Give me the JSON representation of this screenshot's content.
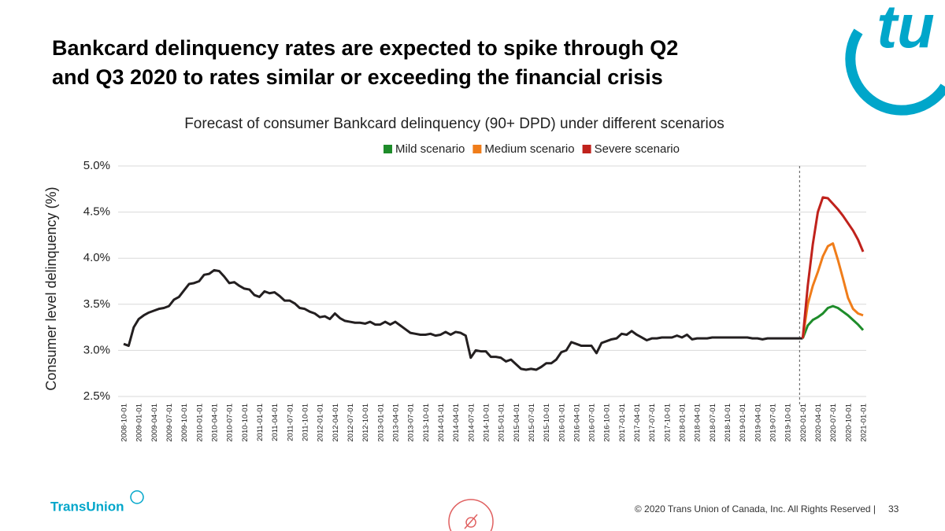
{
  "header": {
    "title_lines": [
      "Bankcard delinquency rates are expected to spike through Q2",
      "and Q3 2020 to rates similar or exceeding the financial crisis"
    ],
    "logo_text": "tu"
  },
  "chart_data": {
    "type": "line",
    "title": "Forecast of consumer Bankcard delinquency (90+ DPD) under different scenarios",
    "y_label": "Consumer level delinquency (%)",
    "ylim": [
      2.5,
      5.0
    ],
    "yticks": [
      {
        "value": 2.5,
        "label": "2.5%"
      },
      {
        "value": 3.0,
        "label": "3.0%"
      },
      {
        "value": 3.5,
        "label": "3.5%"
      },
      {
        "value": 4.0,
        "label": "4.0%"
      },
      {
        "value": 4.5,
        "label": "4.5%"
      },
      {
        "value": 5.0,
        "label": "5.0%"
      }
    ],
    "grid": true,
    "legend": "top",
    "categories": [
      "2008-10-01",
      null,
      null,
      "2009-01-01",
      null,
      null,
      "2009-04-01",
      null,
      null,
      "2009-07-01",
      null,
      null,
      "2009-10-01",
      null,
      null,
      "2010-01-01",
      null,
      null,
      "2010-04-01",
      null,
      null,
      "2010-07-01",
      null,
      null,
      "2010-10-01",
      null,
      null,
      "2011-01-01",
      null,
      null,
      "2011-04-01",
      null,
      null,
      "2011-07-01",
      null,
      null,
      "2011-10-01",
      null,
      null,
      "2012-01-01",
      null,
      null,
      "2012-04-01",
      null,
      null,
      "2012-07-01",
      null,
      null,
      "2012-10-01",
      null,
      null,
      "2013-01-01",
      null,
      null,
      "2013-04-01",
      null,
      null,
      "2013-07-01",
      null,
      null,
      "2013-10-01",
      null,
      null,
      "2014-01-01",
      null,
      null,
      "2014-04-01",
      null,
      null,
      "2014-07-01",
      null,
      null,
      "2014-10-01",
      null,
      null,
      "2015-01-01",
      null,
      null,
      "2015-04-01",
      null,
      null,
      "2015-07-01",
      null,
      null,
      "2015-10-01",
      null,
      null,
      "2016-01-01",
      null,
      null,
      "2016-04-01",
      null,
      null,
      "2016-07-01",
      null,
      null,
      "2016-10-01",
      null,
      null,
      "2017-01-01",
      null,
      null,
      "2017-04-01",
      null,
      null,
      "2017-07-01",
      null,
      null,
      "2017-10-01",
      null,
      null,
      "2018-01-01",
      null,
      null,
      "2018-04-01",
      null,
      null,
      "2018-07-01",
      null,
      null,
      "2018-10-01",
      null,
      null,
      "2019-01-01",
      null,
      null,
      "2019-04-01",
      null,
      null,
      "2019-07-01",
      null,
      null,
      "2019-10-01",
      null,
      null,
      "2020-01-01",
      null,
      null,
      "2020-04-01",
      null,
      null,
      "2020-07-01",
      null,
      null,
      "2020-10-01",
      null,
      null,
      "2021-01-01"
    ],
    "series": [
      {
        "color": "#231f20",
        "values": [
          3.07,
          3.05,
          3.25,
          3.34,
          3.38,
          3.41,
          3.43,
          3.45,
          3.46,
          3.48,
          3.55,
          3.58,
          3.65,
          3.72,
          3.73,
          3.75,
          3.82,
          3.83,
          3.87,
          3.86,
          3.8,
          3.73,
          3.74,
          3.7,
          3.67,
          3.66,
          3.6,
          3.58,
          3.64,
          3.62,
          3.63,
          3.59,
          3.54,
          3.54,
          3.51,
          3.46,
          3.45,
          3.42,
          3.4,
          3.36,
          3.37,
          3.34,
          3.4,
          3.35,
          3.32,
          3.31,
          3.3,
          3.3,
          3.29,
          3.31,
          3.28,
          3.28,
          3.31,
          3.28,
          3.31,
          3.27,
          3.23,
          3.19,
          3.18,
          3.17,
          3.17,
          3.18,
          3.16,
          3.17,
          3.2,
          3.17,
          3.2,
          3.19,
          3.16,
          2.92,
          3.0,
          2.99,
          2.99,
          2.93,
          2.93,
          2.92,
          2.88,
          2.9,
          2.85,
          2.8,
          2.79,
          2.8,
          2.79,
          2.82,
          2.86,
          2.86,
          2.9,
          2.98,
          3.0,
          3.09,
          3.07,
          3.05,
          3.05,
          3.05,
          2.97,
          3.08,
          3.1,
          3.12,
          3.13,
          3.18,
          3.17,
          3.21,
          3.17,
          3.14,
          3.11,
          3.13,
          3.13,
          3.14,
          3.14,
          3.14,
          3.16,
          3.14,
          3.17,
          3.12,
          3.13,
          3.13,
          3.13,
          3.14,
          3.14,
          3.14,
          3.14,
          3.14,
          3.14,
          3.14,
          3.14,
          3.13,
          3.13,
          3.12,
          3.13,
          3.13,
          3.13,
          3.13,
          3.13,
          3.13,
          3.13,
          3.13,
          null,
          null,
          null,
          null,
          null,
          null,
          null,
          null,
          null,
          null,
          null,
          null
        ]
      },
      {
        "name": "Mild scenario",
        "color": "#1e8c2a",
        "values": [
          null,
          null,
          null,
          null,
          null,
          null,
          null,
          null,
          null,
          null,
          null,
          null,
          null,
          null,
          null,
          null,
          null,
          null,
          null,
          null,
          null,
          null,
          null,
          null,
          null,
          null,
          null,
          null,
          null,
          null,
          null,
          null,
          null,
          null,
          null,
          null,
          null,
          null,
          null,
          null,
          null,
          null,
          null,
          null,
          null,
          null,
          null,
          null,
          null,
          null,
          null,
          null,
          null,
          null,
          null,
          null,
          null,
          null,
          null,
          null,
          null,
          null,
          null,
          null,
          null,
          null,
          null,
          null,
          null,
          null,
          null,
          null,
          null,
          null,
          null,
          null,
          null,
          null,
          null,
          null,
          null,
          null,
          null,
          null,
          null,
          null,
          null,
          null,
          null,
          null,
          null,
          null,
          null,
          null,
          null,
          null,
          null,
          null,
          null,
          null,
          null,
          null,
          null,
          null,
          null,
          null,
          null,
          null,
          null,
          null,
          null,
          null,
          null,
          null,
          null,
          null,
          null,
          null,
          null,
          null,
          null,
          null,
          null,
          null,
          null,
          null,
          null,
          null,
          null,
          null,
          null,
          null,
          null,
          null,
          null,
          3.13,
          3.27,
          3.33,
          3.36,
          3.4,
          3.46,
          3.48,
          3.46,
          3.42,
          3.38,
          3.33,
          3.28,
          3.22
        ]
      },
      {
        "name": "Medium scenario",
        "color": "#f07d1a",
        "values": [
          null,
          null,
          null,
          null,
          null,
          null,
          null,
          null,
          null,
          null,
          null,
          null,
          null,
          null,
          null,
          null,
          null,
          null,
          null,
          null,
          null,
          null,
          null,
          null,
          null,
          null,
          null,
          null,
          null,
          null,
          null,
          null,
          null,
          null,
          null,
          null,
          null,
          null,
          null,
          null,
          null,
          null,
          null,
          null,
          null,
          null,
          null,
          null,
          null,
          null,
          null,
          null,
          null,
          null,
          null,
          null,
          null,
          null,
          null,
          null,
          null,
          null,
          null,
          null,
          null,
          null,
          null,
          null,
          null,
          null,
          null,
          null,
          null,
          null,
          null,
          null,
          null,
          null,
          null,
          null,
          null,
          null,
          null,
          null,
          null,
          null,
          null,
          null,
          null,
          null,
          null,
          null,
          null,
          null,
          null,
          null,
          null,
          null,
          null,
          null,
          null,
          null,
          null,
          null,
          null,
          null,
          null,
          null,
          null,
          null,
          null,
          null,
          null,
          null,
          null,
          null,
          null,
          null,
          null,
          null,
          null,
          null,
          null,
          null,
          null,
          null,
          null,
          null,
          null,
          null,
          null,
          null,
          null,
          null,
          null,
          3.13,
          3.5,
          3.7,
          3.85,
          4.02,
          4.13,
          4.16,
          3.98,
          3.78,
          3.57,
          3.45,
          3.4,
          3.38
        ]
      },
      {
        "name": "Severe scenario",
        "color": "#c0221c",
        "values": [
          null,
          null,
          null,
          null,
          null,
          null,
          null,
          null,
          null,
          null,
          null,
          null,
          null,
          null,
          null,
          null,
          null,
          null,
          null,
          null,
          null,
          null,
          null,
          null,
          null,
          null,
          null,
          null,
          null,
          null,
          null,
          null,
          null,
          null,
          null,
          null,
          null,
          null,
          null,
          null,
          null,
          null,
          null,
          null,
          null,
          null,
          null,
          null,
          null,
          null,
          null,
          null,
          null,
          null,
          null,
          null,
          null,
          null,
          null,
          null,
          null,
          null,
          null,
          null,
          null,
          null,
          null,
          null,
          null,
          null,
          null,
          null,
          null,
          null,
          null,
          null,
          null,
          null,
          null,
          null,
          null,
          null,
          null,
          null,
          null,
          null,
          null,
          null,
          null,
          null,
          null,
          null,
          null,
          null,
          null,
          null,
          null,
          null,
          null,
          null,
          null,
          null,
          null,
          null,
          null,
          null,
          null,
          null,
          null,
          null,
          null,
          null,
          null,
          null,
          null,
          null,
          null,
          null,
          null,
          null,
          null,
          null,
          null,
          null,
          null,
          null,
          null,
          null,
          null,
          null,
          null,
          null,
          null,
          null,
          null,
          3.13,
          3.7,
          4.15,
          4.5,
          4.66,
          4.65,
          4.59,
          4.53,
          4.46,
          4.38,
          4.3,
          4.2,
          4.07
        ]
      }
    ]
  },
  "footer": {
    "brand": "TransUnion",
    "copyright": "© 2020 Trans Union of Canada, Inc. All Rights Reserved |",
    "page": "33"
  }
}
